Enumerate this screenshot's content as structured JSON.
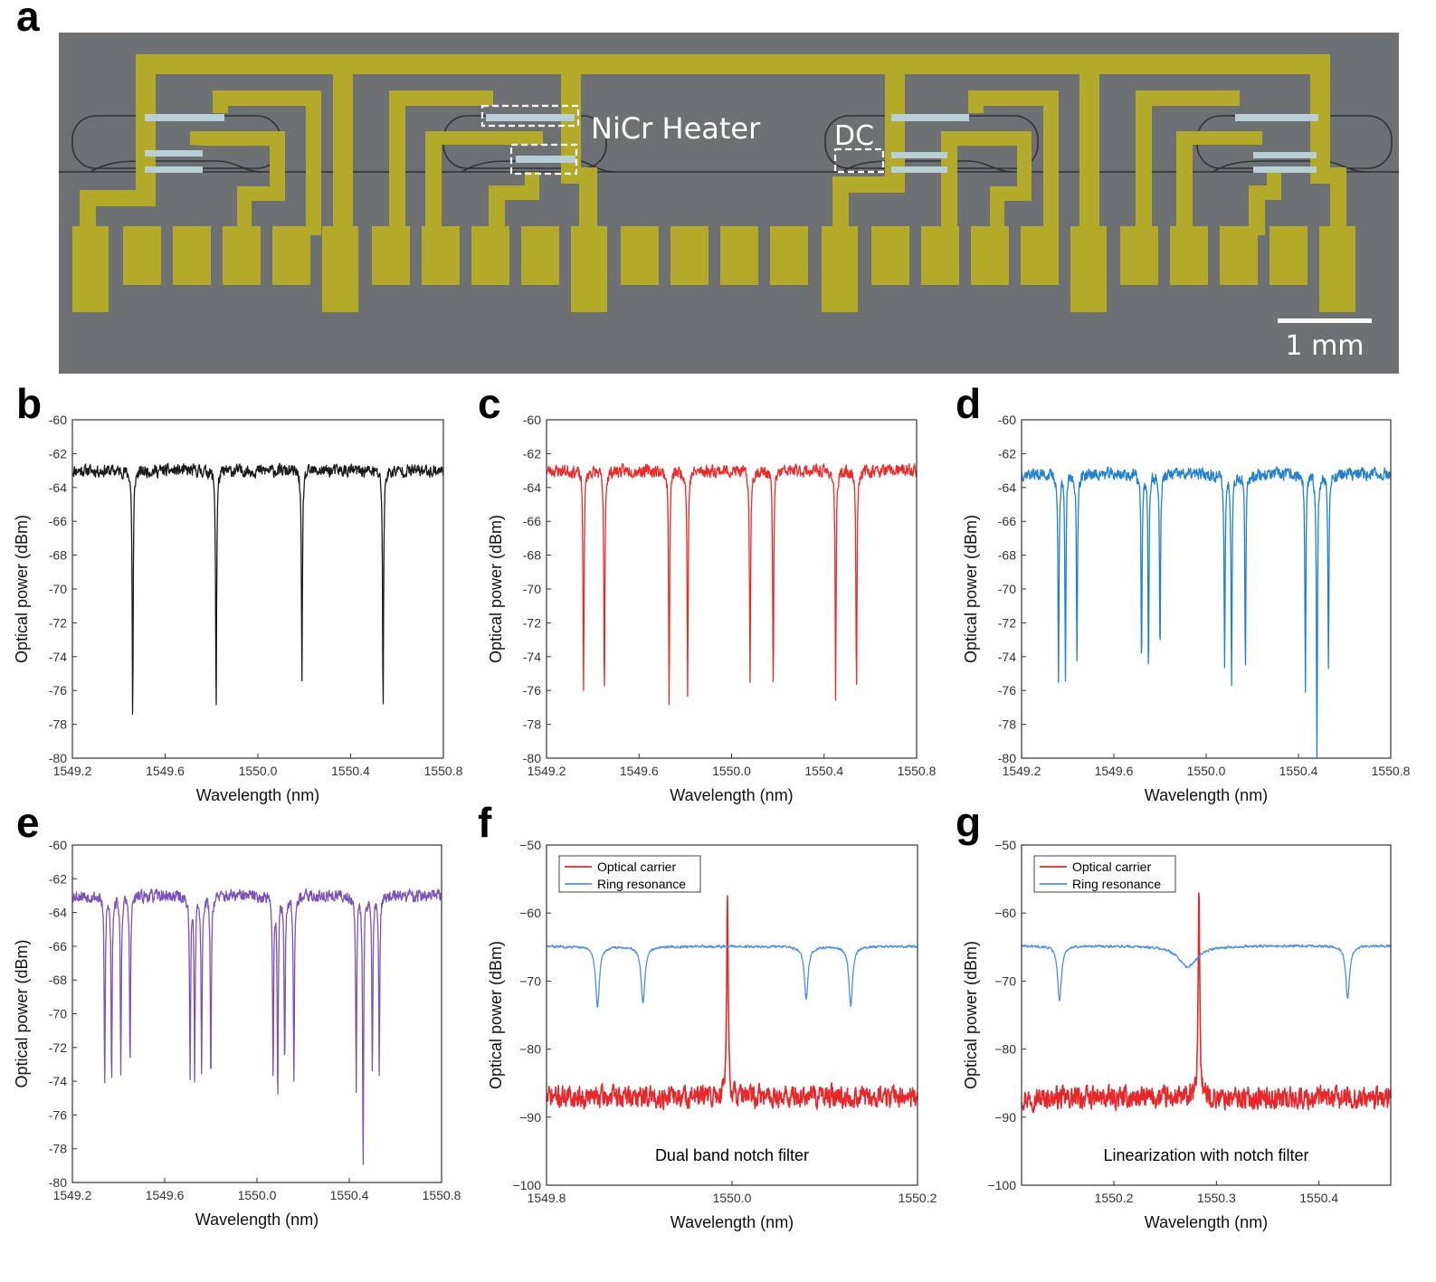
{
  "panel_a": {
    "letter": "a",
    "heater_label": "NiCr Heater",
    "dc_label": "DC",
    "scalebar_label": "1 mm",
    "colors": {
      "background": "#6e7173",
      "electrode": "#b3aa2a",
      "heater": "#b9cfd6",
      "waveguide": "#2a2d30"
    }
  },
  "chart_data": [
    {
      "panel": "b",
      "type": "line",
      "xlabel": "Wavelength (nm)",
      "ylabel": "Optical power (dBm)",
      "xlim": [
        1549.2,
        1550.8
      ],
      "ylim": [
        -80,
        -60
      ],
      "xticks": [
        1549.2,
        1549.6,
        1550.0,
        1550.4,
        1550.8
      ],
      "xtick_labels": [
        "1549.2",
        "1549.6",
        "1550.0",
        "1550.4",
        "1550.8"
      ],
      "yticks": [
        -60,
        -62,
        -64,
        -66,
        -68,
        -70,
        -72,
        -74,
        -76,
        -78,
        -80
      ],
      "ytick_labels": [
        "-60",
        "-62",
        "-64",
        "-66",
        "-68",
        "-70",
        "-72",
        "-74",
        "-76",
        "-78",
        "-80"
      ],
      "grid": false,
      "series": [
        {
          "color": "#1a1a1a",
          "baseline": -63.0,
          "noise": 0.5,
          "seed": 11,
          "dips": [
            [
              1549.46,
              -77.8
            ],
            [
              1549.82,
              -77.3
            ],
            [
              1550.19,
              -75.7
            ],
            [
              1550.54,
              -77.2
            ]
          ]
        }
      ]
    },
    {
      "panel": "c",
      "type": "line",
      "xlabel": "Wavelength (nm)",
      "ylabel": "Optical power (dBm)",
      "xlim": [
        1549.2,
        1550.8
      ],
      "ylim": [
        -80,
        -60
      ],
      "xticks": [
        1549.2,
        1549.6,
        1550.0,
        1550.4,
        1550.8
      ],
      "xtick_labels": [
        "1549.2",
        "1549.6",
        "1550.0",
        "1550.4",
        "1550.8"
      ],
      "yticks": [
        -60,
        -62,
        -64,
        -66,
        -68,
        -70,
        -72,
        -74,
        -76,
        -78,
        -80
      ],
      "ytick_labels": [
        "-60",
        "-62",
        "-64",
        "-66",
        "-68",
        "-70",
        "-72",
        "-74",
        "-76",
        "-78",
        "-80"
      ],
      "grid": false,
      "series": [
        {
          "color": "#ec2a2a",
          "baseline": -63.0,
          "noise": 0.5,
          "seed": 23,
          "dips": [
            [
              1549.36,
              -75.9
            ],
            [
              1549.45,
              -76.7
            ],
            [
              1549.73,
              -77.0
            ],
            [
              1549.81,
              -76.4
            ],
            [
              1550.08,
              -75.8
            ],
            [
              1550.18,
              -76.1
            ],
            [
              1550.45,
              -76.7
            ],
            [
              1550.54,
              -76.2
            ]
          ]
        }
      ]
    },
    {
      "panel": "d",
      "type": "line",
      "xlabel": "Wavelength (nm)",
      "ylabel": "Optical power (dBm)",
      "xlim": [
        1549.2,
        1550.8
      ],
      "ylim": [
        -80,
        -60
      ],
      "xticks": [
        1549.2,
        1549.6,
        1550.0,
        1550.4,
        1550.8
      ],
      "xtick_labels": [
        "1549.2",
        "1549.6",
        "1550.0",
        "1550.4",
        "1550.8"
      ],
      "yticks": [
        -60,
        -62,
        -64,
        -66,
        -68,
        -70,
        -72,
        -74,
        -76,
        -78,
        -80
      ],
      "ytick_labels": [
        "-60",
        "-62",
        "-64",
        "-66",
        "-68",
        "-70",
        "-72",
        "-74",
        "-76",
        "-78",
        "-80"
      ],
      "grid": false,
      "series": [
        {
          "color": "#1f7fd1",
          "baseline": -63.2,
          "noise": 0.5,
          "seed": 37,
          "dips": [
            [
              1549.36,
              -75.5
            ],
            [
              1549.39,
              -75.2
            ],
            [
              1549.44,
              -74.2
            ],
            [
              1549.72,
              -74.7
            ],
            [
              1549.75,
              -74.9
            ],
            [
              1549.8,
              -73.8
            ],
            [
              1550.08,
              -74.6
            ],
            [
              1550.11,
              -75.3
            ],
            [
              1550.17,
              -75.1
            ],
            [
              1550.43,
              -76.0
            ],
            [
              1550.48,
              -80.0
            ],
            [
              1550.53,
              -74.6
            ]
          ]
        }
      ]
    },
    {
      "panel": "e",
      "type": "line",
      "xlabel": "Wavelength (nm)",
      "ylabel": "Optical power (dBm)",
      "xlim": [
        1549.2,
        1550.8
      ],
      "ylim": [
        -80,
        -60
      ],
      "xticks": [
        1549.2,
        1549.6,
        1550.0,
        1550.4,
        1550.8
      ],
      "xtick_labels": [
        "1549.2",
        "1549.6",
        "1550.0",
        "1550.4",
        "1550.8"
      ],
      "yticks": [
        -60,
        -62,
        -64,
        -66,
        -68,
        -70,
        -72,
        -74,
        -76,
        -78,
        -80
      ],
      "ytick_labels": [
        "-60",
        "-62",
        "-64",
        "-66",
        "-68",
        "-70",
        "-72",
        "-74",
        "-76",
        "-78",
        "-80"
      ],
      "grid": false,
      "series": [
        {
          "color": "#7b52b8",
          "baseline": -63.0,
          "noise": 0.5,
          "seed": 53,
          "dips": [
            [
              1549.34,
              -74.5
            ],
            [
              1549.37,
              -74.2
            ],
            [
              1549.41,
              -73.5
            ],
            [
              1549.45,
              -73.4
            ],
            [
              1549.71,
              -74.1
            ],
            [
              1549.73,
              -73.6
            ],
            [
              1549.76,
              -73.5
            ],
            [
              1549.8,
              -74.1
            ],
            [
              1550.07,
              -74.0
            ],
            [
              1550.09,
              -75.2
            ],
            [
              1550.12,
              -73.6
            ],
            [
              1550.16,
              -73.8
            ],
            [
              1550.43,
              -74.4
            ],
            [
              1550.46,
              -79.4
            ],
            [
              1550.5,
              -73.6
            ],
            [
              1550.53,
              -73.4
            ]
          ]
        }
      ]
    },
    {
      "panel": "f",
      "type": "line",
      "xlabel": "Wavelength (nm)",
      "ylabel": "Optical power (dBm)",
      "xlim": [
        1549.8,
        1550.2
      ],
      "ylim": [
        -100,
        -50
      ],
      "xticks": [
        1549.8,
        1550.0,
        1550.2
      ],
      "xtick_labels": [
        "1549.8",
        "1550.0",
        "1550.2"
      ],
      "yticks": [
        -50,
        -60,
        -70,
        -80,
        -90,
        -100
      ],
      "ytick_labels": [
        "−50",
        "−60",
        "−70",
        "−80",
        "−90",
        "−100"
      ],
      "grid": false,
      "legend": {
        "placement": "top-left",
        "entries": [
          "Optical carrier",
          "Ring resonance"
        ]
      },
      "annotation": "Dual band notch filter",
      "series": [
        {
          "name": "Optical carrier",
          "color": "#e8272b",
          "baseline": -87.0,
          "noise": 2.2,
          "seed": 71,
          "peak": [
            1549.995,
            -57.3
          ]
        },
        {
          "name": "Ring resonance",
          "color": "#4a90e2",
          "baseline": -64.9,
          "noise": 0.25,
          "seed": 83,
          "dips": [
            [
              1549.855,
              -73.8
            ],
            [
              1549.904,
              -73.2
            ],
            [
              1550.08,
              -72.6
            ],
            [
              1550.128,
              -73.6
            ]
          ]
        }
      ]
    },
    {
      "panel": "g",
      "type": "line",
      "xlabel": "Wavelength (nm)",
      "ylabel": "Optical power (dBm)",
      "xlim": [
        1550.11,
        1550.47
      ],
      "ylim": [
        -100,
        -50
      ],
      "xticks": [
        1550.2,
        1550.3,
        1550.4
      ],
      "xtick_labels": [
        "1550.2",
        "1550.3",
        "1550.4"
      ],
      "yticks": [
        -50,
        -60,
        -70,
        -80,
        -90,
        -100
      ],
      "ytick_labels": [
        "−50",
        "−60",
        "−70",
        "−80",
        "−90",
        "−100"
      ],
      "grid": false,
      "legend": {
        "placement": "top-left",
        "entries": [
          "Optical carrier",
          "Ring resonance"
        ]
      },
      "annotation": "Linearization with notch filter",
      "series": [
        {
          "name": "Optical carrier",
          "color": "#e8272b",
          "baseline": -87.2,
          "noise": 2.2,
          "seed": 97,
          "peak": [
            1550.283,
            -56.5
          ]
        },
        {
          "name": "Ring resonance",
          "color": "#4a90e2",
          "baseline": -64.8,
          "noise": 0.25,
          "seed": 101,
          "dips": [
            [
              1550.147,
              -73.0
            ],
            [
              1550.428,
              -72.6
            ]
          ],
          "broad_dip": [
            1550.272,
            -67.9
          ]
        }
      ]
    }
  ]
}
